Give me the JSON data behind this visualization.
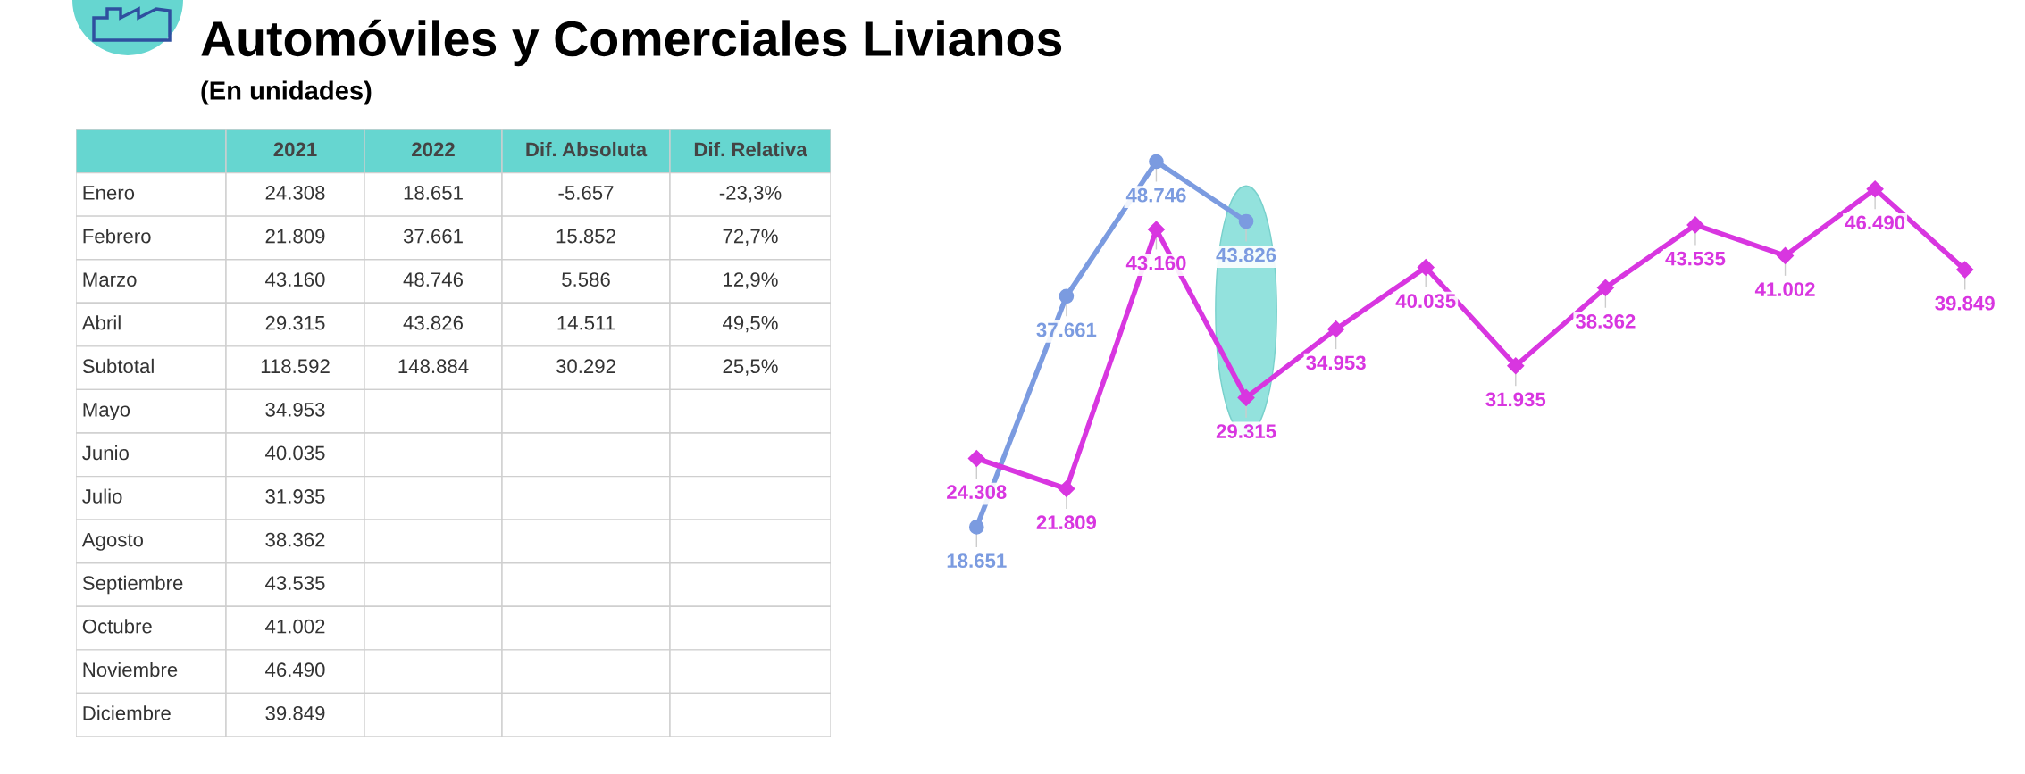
{
  "chart_data": [
    {
      "type": "other",
      "title": "Automóviles y Comerciales Livianos",
      "subtitle": "(En unidades)",
      "categories": [
        null,
        "2021",
        "2022",
        "Dif. Absoluta",
        "Dif. Relativa"
      ],
      "y_categories": [
        "Enero",
        "Febrero",
        "Marzo",
        "Abril",
        "Subtotal",
        "Mayo",
        "Junio",
        "Julio",
        "Agosto",
        "Septiembre",
        "Octubre",
        "Noviembre",
        "Diciembre"
      ],
      "cell_labels": [
        [
          "24.308",
          "18.651",
          "-5.657",
          "-23,3%"
        ],
        [
          "21.809",
          "37.661",
          "15.852",
          "72,7%"
        ],
        [
          "43.160",
          "48.746",
          "5.586",
          "12,9%"
        ],
        [
          "29.315",
          "43.826",
          "14.511",
          "49,5%"
        ],
        [
          "118.592",
          "148.884",
          "30.292",
          "25,5%"
        ],
        [
          "34.953",
          null,
          null,
          null
        ],
        [
          "40.035",
          null,
          null,
          null
        ],
        [
          "31.935",
          null,
          null,
          null
        ],
        [
          "38.362",
          null,
          null,
          null
        ],
        [
          "43.535",
          null,
          null,
          null
        ],
        [
          "41.002",
          null,
          null,
          null
        ],
        [
          "46.490",
          null,
          null,
          null
        ],
        [
          "39.849",
          null,
          null,
          null
        ]
      ],
      "color": "#66d6d0"
    },
    {
      "type": "line",
      "categories": [
        null,
        null,
        null,
        null,
        null,
        null,
        null,
        null,
        null,
        null,
        null,
        null
      ],
      "grid": false,
      "line_style": "solid",
      "series": [
        {
          "color": "#7b9be0",
          "marker": "circle",
          "values": [
            18651,
            37661,
            48746,
            43826,
            null,
            null,
            null,
            null,
            null,
            null,
            null,
            null
          ],
          "value_labels": [
            "18.651",
            "37.661",
            "48.746",
            "43.826",
            null,
            null,
            null,
            null,
            null,
            null,
            null,
            null
          ]
        },
        {
          "color": "#d836e0",
          "marker": "diamond",
          "values": [
            24308,
            21809,
            43160,
            29315,
            34953,
            40035,
            31935,
            38362,
            43535,
            41002,
            46490,
            39849
          ],
          "value_labels": [
            "24.308",
            "21.809",
            "43.160",
            "29.315",
            "34.953",
            "40.035",
            "31.935",
            "38.362",
            "43.535",
            "41.002",
            "46.490",
            "39.849"
          ]
        }
      ]
    }
  ]
}
